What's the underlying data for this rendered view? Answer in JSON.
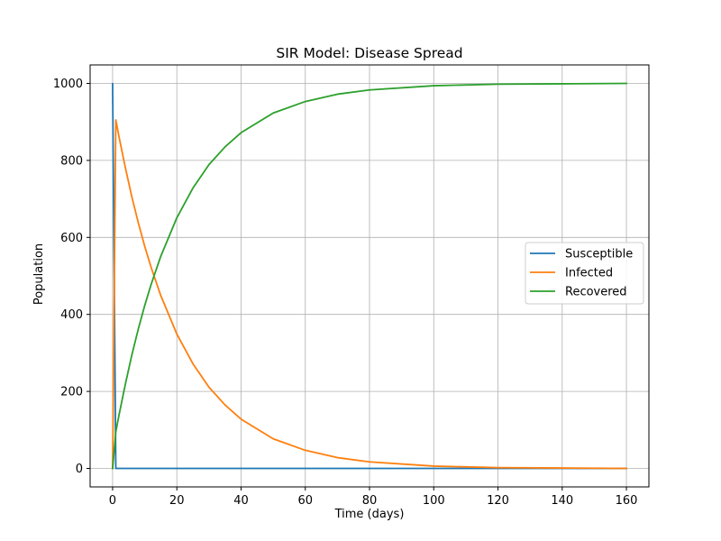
{
  "chart_data": {
    "type": "line",
    "title": "SIR Model: Disease Spread",
    "xlabel": "Time (days)",
    "ylabel": "Population",
    "xlim": [
      -7,
      167
    ],
    "ylim": [
      -48,
      1048
    ],
    "xticks": [
      0,
      20,
      40,
      60,
      80,
      100,
      120,
      140,
      160
    ],
    "yticks": [
      0,
      200,
      400,
      600,
      800,
      1000
    ],
    "grid": true,
    "legend_position": "center-right",
    "series": [
      {
        "name": "Susceptible",
        "color": "#1f77b4",
        "x": [
          0,
          1,
          2,
          5,
          10,
          20,
          40,
          60,
          80,
          100,
          120,
          140,
          160
        ],
        "y": [
          999,
          0,
          0,
          0,
          0,
          0,
          0,
          0,
          0,
          0,
          0,
          0,
          0
        ]
      },
      {
        "name": "Infected",
        "color": "#ff7f0e",
        "x": [
          0,
          1,
          2,
          4,
          6,
          8,
          10,
          12,
          15,
          20,
          25,
          30,
          35,
          40,
          50,
          60,
          70,
          80,
          100,
          120,
          140,
          160
        ],
        "y": [
          1,
          905,
          861,
          780,
          705,
          638,
          577,
          522,
          449,
          349,
          272,
          211,
          165,
          128,
          77,
          47,
          28,
          17,
          6,
          2,
          1,
          0
        ]
      },
      {
        "name": "Recovered",
        "color": "#2ca02c",
        "x": [
          0,
          1,
          2,
          4,
          6,
          8,
          10,
          12,
          15,
          20,
          25,
          30,
          35,
          40,
          50,
          60,
          70,
          80,
          100,
          120,
          140,
          160
        ],
        "y": [
          0,
          95,
          139,
          220,
          295,
          362,
          423,
          478,
          551,
          651,
          728,
          789,
          835,
          872,
          923,
          953,
          972,
          983,
          994,
          998,
          999,
          1000
        ]
      }
    ]
  }
}
